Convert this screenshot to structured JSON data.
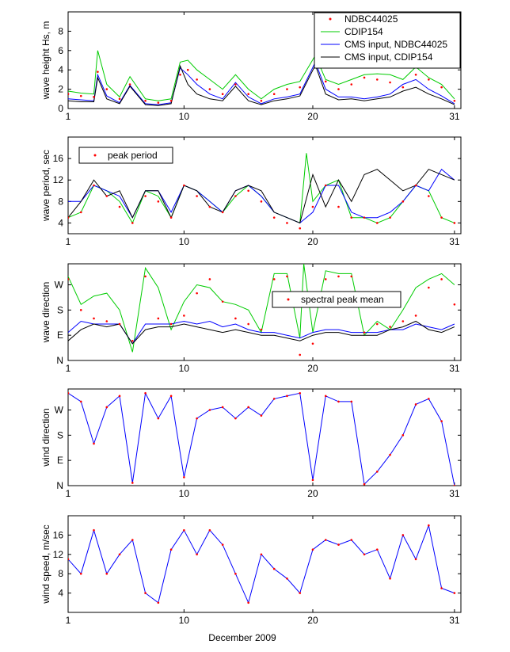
{
  "figure": {
    "xlabel": "December 2009",
    "colors": {
      "obs": "#ff0000",
      "cdip": "#00cc00",
      "cms_ndbc": "#0000ff",
      "cms_cdip": "#000000"
    }
  },
  "chart_data": [
    {
      "type": "line",
      "ylabel": "wave height Hs, m",
      "xlim": [
        1,
        31.5
      ],
      "ylim": [
        0,
        10
      ],
      "xticks": [
        "1",
        "10",
        "20",
        "31"
      ],
      "yticks": [
        "0",
        "2",
        "4",
        "6",
        "8"
      ],
      "legend": {
        "placement": "top-right"
      },
      "series": [
        {
          "name": "NDBC44025",
          "style": "dots",
          "color": "#ff0000",
          "x": [
            1,
            2,
            3,
            3.3,
            4,
            5,
            5.8,
            7,
            8,
            9,
            9.7,
            10.3,
            11,
            12,
            13,
            14,
            15,
            16,
            17,
            18,
            19,
            20.2,
            21,
            22,
            23,
            24,
            25,
            26,
            27,
            28,
            29,
            30,
            31
          ],
          "y": [
            1.5,
            1.3,
            1.2,
            3.8,
            2.0,
            1.0,
            2.5,
            0.8,
            0.6,
            0.8,
            3.5,
            4.0,
            3.0,
            2.0,
            1.5,
            2.5,
            1.5,
            0.8,
            1.5,
            2.0,
            2.2,
            4.5,
            2.8,
            2.0,
            2.5,
            3.2,
            3.0,
            2.7,
            2.2,
            3.5,
            3.0,
            2.2,
            0.8
          ]
        },
        {
          "name": "CDIP154",
          "style": "line",
          "color": "#00cc00",
          "x": [
            1,
            2,
            3,
            3.3,
            4,
            5,
            5.8,
            7,
            8,
            9,
            9.7,
            10.3,
            11,
            12,
            13,
            14,
            15,
            16,
            17,
            18,
            19,
            20.2,
            21,
            22,
            23,
            24,
            25,
            26,
            27,
            28,
            29,
            30,
            31
          ],
          "y": [
            1.8,
            1.6,
            1.5,
            6.0,
            2.5,
            1.2,
            3.3,
            1.0,
            0.8,
            1.0,
            4.8,
            5.0,
            4.0,
            3.0,
            2.0,
            3.5,
            2.0,
            1.0,
            2.0,
            2.5,
            2.8,
            5.5,
            3.0,
            2.5,
            3.0,
            3.5,
            3.6,
            3.5,
            3.0,
            4.3,
            3.2,
            2.5,
            1.0
          ]
        },
        {
          "name": "CMS input, NDBC44025",
          "style": "line",
          "color": "#0000ff",
          "x": [
            1,
            2,
            3,
            3.3,
            4,
            5,
            5.8,
            7,
            8,
            9,
            9.7,
            10.3,
            11,
            12,
            13,
            14,
            15,
            16,
            17,
            18,
            19,
            20.2,
            21,
            22,
            23,
            24,
            25,
            26,
            27,
            28,
            29,
            30,
            31
          ],
          "y": [
            1.0,
            0.9,
            0.8,
            3.5,
            1.3,
            0.6,
            2.4,
            0.5,
            0.4,
            0.6,
            4.2,
            3.5,
            2.5,
            1.5,
            1.0,
            2.7,
            1.2,
            0.5,
            1.0,
            1.2,
            1.5,
            4.8,
            2.0,
            1.2,
            1.2,
            1.0,
            1.2,
            1.5,
            2.5,
            3.0,
            2.0,
            1.3,
            0.5
          ]
        },
        {
          "name": "CMS input, CDIP154",
          "style": "line",
          "color": "#000000",
          "x": [
            1,
            2,
            3,
            3.3,
            4,
            5,
            5.8,
            7,
            8,
            9,
            9.7,
            10.3,
            11,
            12,
            13,
            14,
            15,
            16,
            17,
            18,
            19,
            20.2,
            21,
            22,
            23,
            24,
            25,
            26,
            27,
            28,
            29,
            30,
            31
          ],
          "y": [
            0.8,
            0.7,
            0.7,
            3.2,
            1.0,
            0.5,
            2.3,
            0.4,
            0.3,
            0.5,
            4.4,
            2.5,
            1.5,
            1.0,
            0.8,
            2.3,
            0.8,
            0.4,
            0.8,
            1.0,
            1.3,
            4.5,
            1.5,
            0.9,
            1.0,
            0.8,
            1.0,
            1.2,
            1.8,
            2.2,
            1.5,
            1.0,
            0.4
          ]
        }
      ]
    },
    {
      "type": "line",
      "ylabel": "wave period, sec",
      "xlim": [
        1,
        31.5
      ],
      "ylim": [
        2,
        20
      ],
      "xticks": [
        "1",
        "10",
        "20",
        "31"
      ],
      "yticks": [
        "4",
        "8",
        "12",
        "16"
      ],
      "legend": {
        "placement": "top-left"
      },
      "series": [
        {
          "name": "peak period",
          "style": "dots",
          "color": "#ff0000",
          "x": [
            1,
            2,
            3,
            4,
            5,
            6,
            7,
            8,
            9,
            10,
            11,
            12,
            13,
            14,
            15,
            16,
            17,
            18,
            19,
            20,
            21,
            22,
            23,
            24,
            25,
            26,
            27,
            28,
            29,
            30,
            31
          ],
          "y": [
            5,
            6,
            11,
            9,
            7,
            4,
            9,
            8,
            5,
            11,
            9,
            7,
            6,
            9,
            10,
            8,
            5,
            4,
            3,
            7,
            11,
            7,
            5,
            5,
            4,
            5,
            8,
            11,
            9,
            5,
            4
          ]
        },
        {
          "name": "CDIP154",
          "style": "line",
          "color": "#00cc00",
          "x": [
            1,
            2,
            3,
            4,
            5,
            6,
            7,
            8,
            9,
            10,
            11,
            12,
            13,
            14,
            15,
            16,
            17,
            18,
            19,
            19.5,
            20,
            21,
            22,
            23,
            24,
            25,
            26,
            27,
            28,
            29,
            30,
            31
          ],
          "y": [
            5,
            6,
            11,
            10,
            8,
            4,
            10,
            9,
            5,
            11,
            10,
            8,
            6,
            9,
            11,
            9,
            6,
            5,
            4,
            17,
            8,
            11,
            12,
            5,
            5,
            4,
            5,
            8,
            11,
            10,
            5,
            4
          ]
        },
        {
          "name": "CMS input, NDBC44025",
          "style": "line",
          "color": "#0000ff",
          "x": [
            1,
            2,
            3,
            4,
            5,
            6,
            7,
            8,
            9,
            10,
            11,
            12,
            13,
            14,
            15,
            16,
            17,
            18,
            19,
            20,
            21,
            22,
            23,
            24,
            25,
            26,
            27,
            28,
            29,
            30,
            31
          ],
          "y": [
            8,
            8,
            11,
            10,
            9,
            5,
            10,
            10,
            6,
            11,
            10,
            8,
            6,
            10,
            11,
            9,
            6,
            5,
            4,
            6,
            11,
            11,
            6,
            5,
            5,
            6,
            8,
            11,
            10,
            14,
            12
          ]
        },
        {
          "name": "CMS input, CDIP154",
          "style": "line",
          "color": "#000000",
          "x": [
            1,
            2,
            3,
            4,
            5,
            6,
            7,
            8,
            9,
            10,
            11,
            12,
            13,
            14,
            15,
            16,
            17,
            18,
            19,
            20,
            21,
            22,
            23,
            24,
            25,
            26,
            27,
            28,
            29,
            30,
            31
          ],
          "y": [
            5,
            8,
            12,
            9,
            10,
            5,
            10,
            10,
            5,
            11,
            10,
            7,
            6,
            10,
            11,
            10,
            6,
            5,
            4,
            13,
            7,
            12,
            8,
            13,
            14,
            12,
            10,
            11,
            14,
            13,
            12
          ]
        }
      ]
    },
    {
      "type": "line",
      "ylabel": "wave direction",
      "xlim": [
        1,
        31.5
      ],
      "ylim": [
        0,
        345
      ],
      "xticks": [
        "1",
        "10",
        "20",
        "31"
      ],
      "yticks": [
        "N",
        "E",
        "S",
        "W"
      ],
      "legend": {
        "placement": "top-right"
      },
      "series": [
        {
          "name": "spectral peak mean",
          "style": "dots",
          "color": "#ff0000",
          "x": [
            1,
            2,
            3,
            4,
            5,
            6,
            7,
            8,
            9,
            10,
            11,
            12,
            13,
            14,
            15,
            16,
            17,
            18,
            19,
            20,
            21,
            22,
            23,
            24,
            25,
            26,
            27,
            28,
            29,
            30,
            31
          ],
          "y": [
            290,
            180,
            150,
            140,
            130,
            70,
            300,
            150,
            130,
            160,
            240,
            290,
            210,
            150,
            130,
            110,
            290,
            300,
            20,
            60,
            290,
            300,
            300,
            100,
            130,
            120,
            140,
            160,
            260,
            290,
            200
          ]
        },
        {
          "name": "CDIP154",
          "style": "line",
          "color": "#00cc00",
          "x": [
            1,
            2,
            3,
            4,
            5,
            6,
            7,
            8,
            9,
            10,
            11,
            12,
            13,
            14,
            15,
            16,
            17,
            18,
            19,
            19.3,
            20,
            21,
            22,
            23,
            24,
            25,
            26,
            27,
            28,
            29,
            30,
            31
          ],
          "y": [
            300,
            200,
            230,
            240,
            180,
            30,
            330,
            260,
            110,
            210,
            270,
            260,
            210,
            200,
            180,
            100,
            310,
            310,
            80,
            345,
            100,
            320,
            310,
            310,
            90,
            140,
            110,
            180,
            260,
            290,
            310,
            270
          ]
        },
        {
          "name": "CMS input, NDBC44025",
          "style": "line",
          "color": "#0000ff",
          "x": [
            1,
            2,
            3,
            4,
            5,
            6,
            7,
            8,
            9,
            10,
            11,
            12,
            13,
            14,
            15,
            16,
            17,
            18,
            19,
            20,
            21,
            22,
            23,
            24,
            25,
            26,
            27,
            28,
            29,
            30,
            31
          ],
          "y": [
            100,
            140,
            130,
            130,
            130,
            60,
            130,
            130,
            130,
            140,
            130,
            140,
            120,
            130,
            110,
            100,
            100,
            90,
            80,
            100,
            110,
            110,
            100,
            100,
            100,
            110,
            110,
            130,
            120,
            110,
            130
          ]
        },
        {
          "name": "CMS input, CDIP154",
          "style": "line",
          "color": "#000000",
          "x": [
            1,
            2,
            3,
            4,
            5,
            6,
            7,
            8,
            9,
            10,
            11,
            12,
            13,
            14,
            15,
            16,
            17,
            18,
            19,
            20,
            21,
            22,
            23,
            24,
            25,
            26,
            27,
            28,
            29,
            30,
            31
          ],
          "y": [
            70,
            110,
            130,
            120,
            130,
            60,
            110,
            120,
            120,
            130,
            120,
            110,
            100,
            110,
            100,
            90,
            90,
            80,
            70,
            90,
            100,
            100,
            90,
            90,
            90,
            110,
            120,
            140,
            110,
            100,
            120
          ]
        }
      ]
    },
    {
      "type": "line",
      "ylabel": "wind direction",
      "xlim": [
        1,
        31.5
      ],
      "ylim": [
        0,
        345
      ],
      "xticks": [
        "1",
        "10",
        "20",
        "31"
      ],
      "yticks": [
        "N",
        "E",
        "S",
        "W"
      ],
      "series": [
        {
          "name": "wind direction",
          "style": "line+dots",
          "color": "#0000ff",
          "x": [
            1,
            2,
            3,
            4,
            5,
            6,
            7,
            8,
            9,
            10,
            11,
            12,
            13,
            14,
            15,
            16,
            17,
            18,
            19,
            20,
            21,
            22,
            23,
            24,
            25,
            26,
            27,
            28,
            29,
            30,
            31
          ],
          "y": [
            330,
            300,
            150,
            280,
            320,
            10,
            330,
            240,
            320,
            30,
            240,
            270,
            280,
            240,
            280,
            250,
            310,
            320,
            330,
            20,
            320,
            300,
            300,
            5,
            50,
            110,
            180,
            290,
            310,
            230,
            0
          ]
        }
      ]
    },
    {
      "type": "line",
      "ylabel": "wind speed, m/sec",
      "xlim": [
        1,
        31.5
      ],
      "ylim": [
        0,
        20
      ],
      "xticks": [
        "1",
        "10",
        "20",
        "31"
      ],
      "yticks": [
        "4",
        "8",
        "12",
        "16"
      ],
      "series": [
        {
          "name": "wind speed",
          "style": "line+dots",
          "color": "#0000ff",
          "x": [
            1,
            2,
            3,
            4,
            5,
            6,
            7,
            8,
            9,
            10,
            11,
            12,
            13,
            14,
            15,
            16,
            17,
            18,
            19,
            20,
            21,
            22,
            23,
            24,
            25,
            26,
            27,
            28,
            29,
            30,
            31
          ],
          "y": [
            11,
            8,
            17,
            8,
            12,
            15,
            4,
            2,
            13,
            17,
            12,
            17,
            14,
            8,
            2,
            12,
            9,
            7,
            4,
            13,
            15,
            14,
            15,
            12,
            13,
            7,
            16,
            11,
            18,
            5,
            4
          ]
        }
      ]
    }
  ]
}
